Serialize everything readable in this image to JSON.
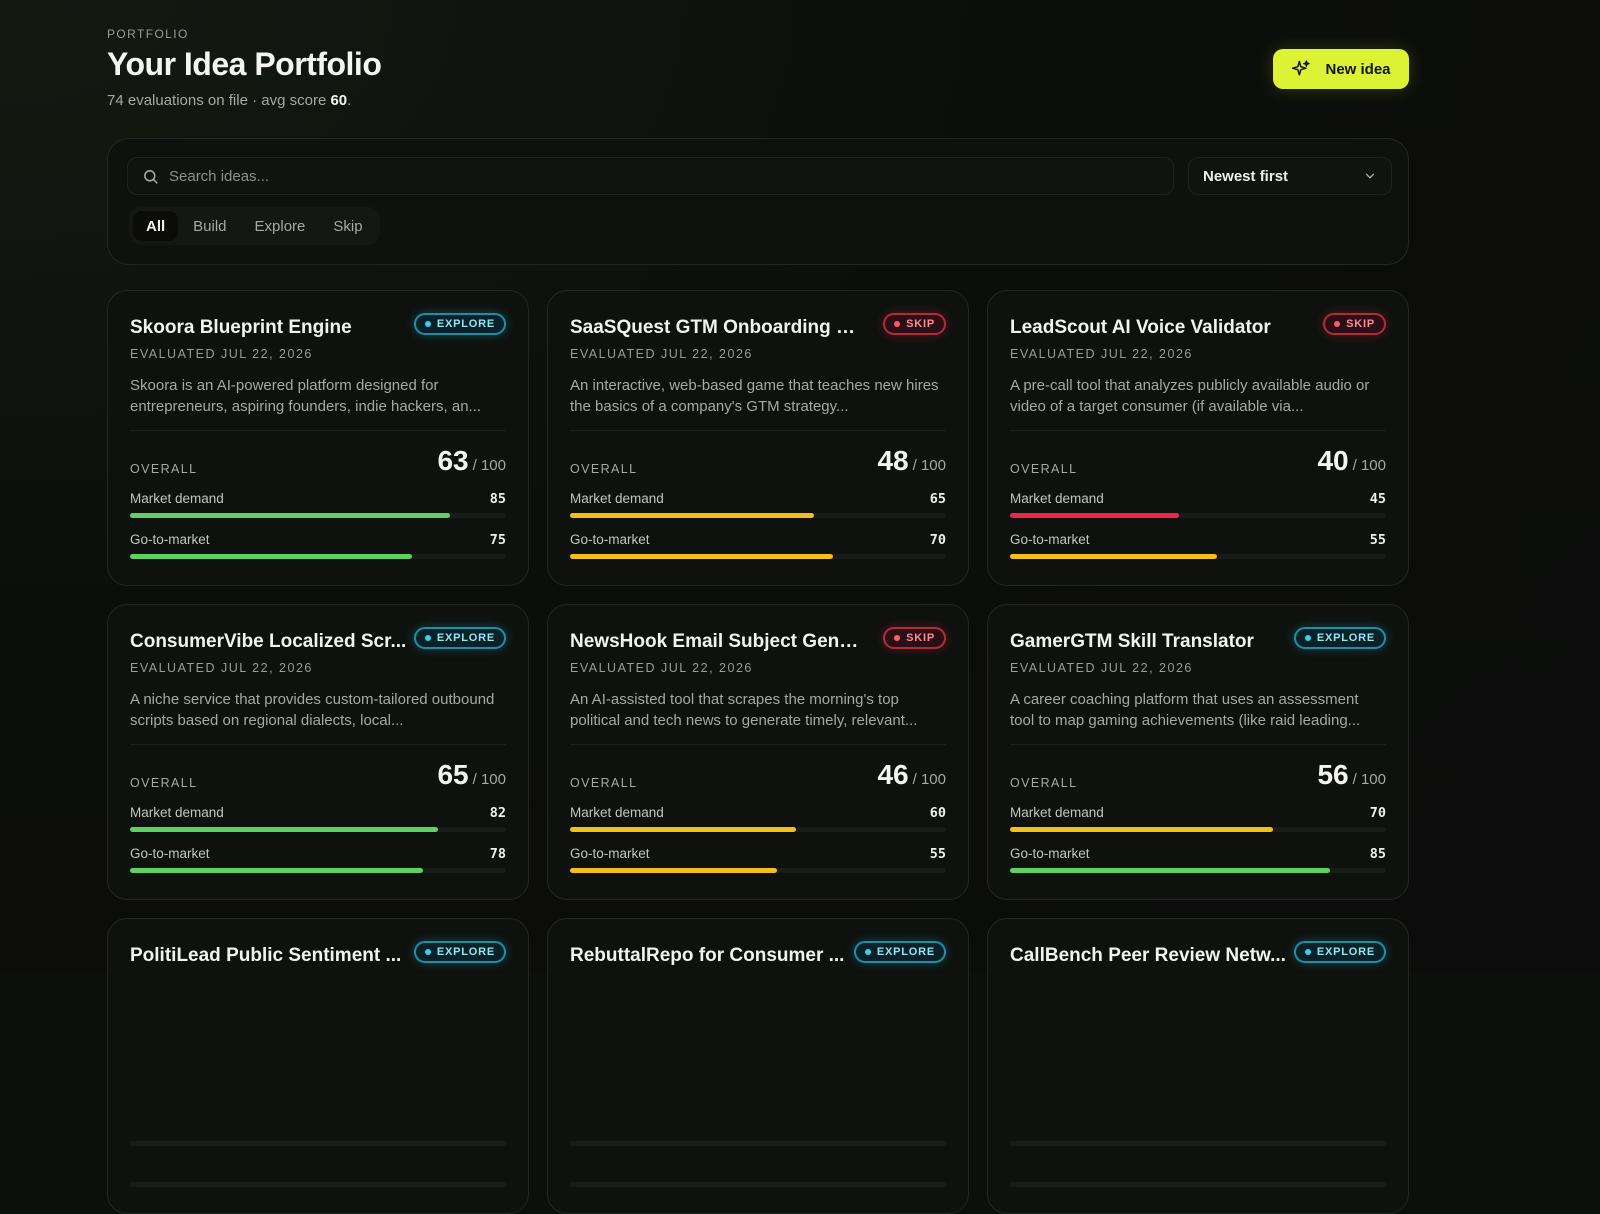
{
  "header": {
    "eyebrow": "PORTFOLIO",
    "title": "Your Idea Portfolio",
    "subtitle_prefix": "74 evaluations on file · avg score ",
    "avg_score": "60",
    "subtitle_suffix": ".",
    "new_button_label": "New idea"
  },
  "filters": {
    "search_placeholder": "Search ideas...",
    "sort_value": "Newest first",
    "tabs": [
      {
        "label": "All",
        "active": true
      },
      {
        "label": "Build",
        "active": false
      },
      {
        "label": "Explore",
        "active": false
      },
      {
        "label": "Skip",
        "active": false
      }
    ]
  },
  "labels": {
    "overall": "OVERALL",
    "max": "/ 100",
    "market_demand": "Market demand",
    "go_to_market": "Go-to-market"
  },
  "colors": {
    "green": "#5dd162",
    "yellow": "#f2c018",
    "red": "#f0254a",
    "accent": "#dcf235"
  },
  "cards": [
    {
      "title": "Skoora Blueprint Engine",
      "badge": "EXPLORE",
      "badge_type": "explore",
      "evaluated": "EVALUATED JUL 22, 2026",
      "description": "Skoora is an AI-powered platform designed for entrepreneurs, aspiring founders, indie hackers, an...",
      "overall": "63",
      "market_demand": 85,
      "go_to_market": 75,
      "md_color": "green",
      "gtm_color": "green"
    },
    {
      "title": "SaaSQuest GTM Onboarding Ga...",
      "badge": "SKIP",
      "badge_type": "skip",
      "evaluated": "EVALUATED JUL 22, 2026",
      "description": "An interactive, web-based game that teaches new hires the basics of a company's GTM strategy...",
      "overall": "48",
      "market_demand": 65,
      "go_to_market": 70,
      "md_color": "yellow",
      "gtm_color": "yellow"
    },
    {
      "title": "LeadScout AI Voice Validator",
      "badge": "SKIP",
      "badge_type": "skip",
      "evaluated": "EVALUATED JUL 22, 2026",
      "description": "A pre-call tool that analyzes publicly available audio or video of a target consumer (if available via...",
      "overall": "40",
      "market_demand": 45,
      "go_to_market": 55,
      "md_color": "red",
      "gtm_color": "yellow"
    },
    {
      "title": "ConsumerVibe Localized Scr...",
      "badge": "EXPLORE",
      "badge_type": "explore",
      "evaluated": "EVALUATED JUL 22, 2026",
      "description": "A niche service that provides custom-tailored outbound scripts based on regional dialects, local...",
      "overall": "65",
      "market_demand": 82,
      "go_to_market": 78,
      "md_color": "green",
      "gtm_color": "green"
    },
    {
      "title": "NewsHook Email Subject Gener...",
      "badge": "SKIP",
      "badge_type": "skip",
      "evaluated": "EVALUATED JUL 22, 2026",
      "description": "An AI-assisted tool that scrapes the morning's top political and tech news to generate timely, relevant...",
      "overall": "46",
      "market_demand": 60,
      "go_to_market": 55,
      "md_color": "yellow",
      "gtm_color": "yellow"
    },
    {
      "title": "GamerGTM Skill Translator",
      "badge": "EXPLORE",
      "badge_type": "explore",
      "evaluated": "EVALUATED JUL 22, 2026",
      "description": "A career coaching platform that uses an assessment tool to map gaming achievements (like raid leading...",
      "overall": "56",
      "market_demand": 70,
      "go_to_market": 85,
      "md_color": "yellow",
      "gtm_color": "green"
    },
    {
      "title": "PolitiLead Public Sentiment ...",
      "badge": "EXPLORE",
      "badge_type": "explore",
      "evaluated": "",
      "description": "",
      "overall": "",
      "market_demand": null,
      "go_to_market": null,
      "md_color": "green",
      "gtm_color": "green"
    },
    {
      "title": "RebuttalRepo for Consumer ...",
      "badge": "EXPLORE",
      "badge_type": "explore",
      "evaluated": "",
      "description": "",
      "overall": "",
      "market_demand": null,
      "go_to_market": null,
      "md_color": "green",
      "gtm_color": "green"
    },
    {
      "title": "CallBench Peer Review Netw...",
      "badge": "EXPLORE",
      "badge_type": "explore",
      "evaluated": "",
      "description": "",
      "overall": "",
      "market_demand": null,
      "go_to_market": null,
      "md_color": "green",
      "gtm_color": "green"
    }
  ]
}
